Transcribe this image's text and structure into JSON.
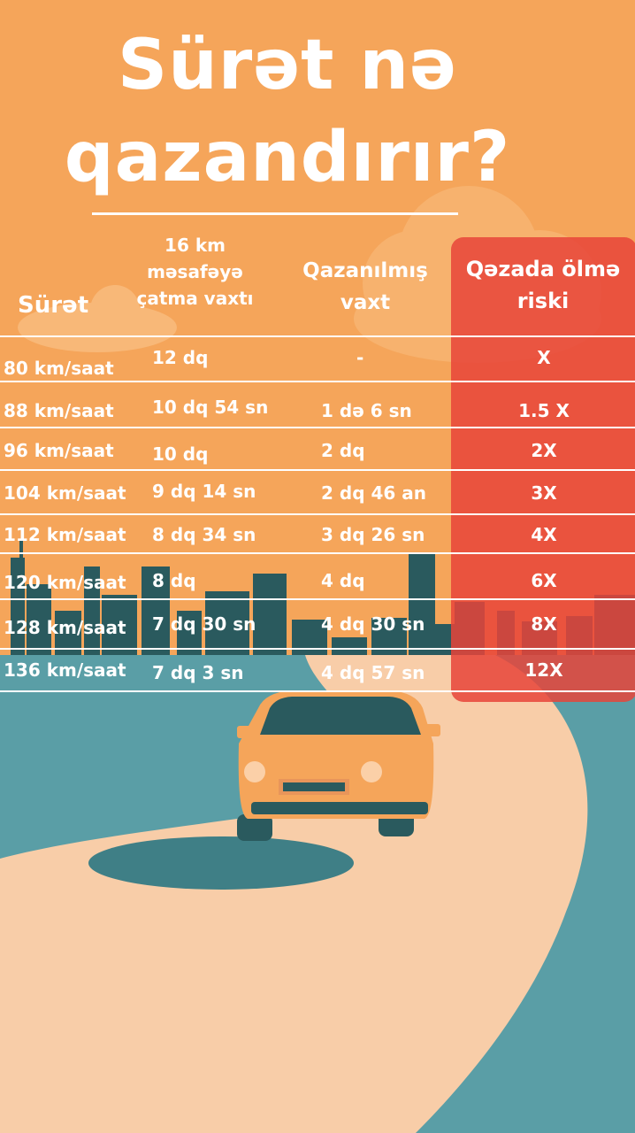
{
  "title": {
    "line1": "Sürət nə",
    "line2": "qazandırır?"
  },
  "table": {
    "headers": {
      "speed": "Sürət",
      "time_line1": "16 km",
      "time_line2": "məsafəyə",
      "time_line3": "çatma vaxtı",
      "gain_line1": "Qazanılmış",
      "gain_line2": "vaxt",
      "risk_line1": "Qəzada ölmə",
      "risk_line2": "riski"
    },
    "rows": [
      {
        "speed": "80 km/saat",
        "time": "12 dq",
        "gain": "-",
        "risk": "X"
      },
      {
        "speed": "88 km/saat",
        "time": "10 dq 54 sn",
        "gain": "1 də 6 sn",
        "risk": "1.5 X"
      },
      {
        "speed": "96 km/saat",
        "time": "10 dq",
        "gain": "2 dq",
        "risk": "2X"
      },
      {
        "speed": "104 km/saat",
        "time": "9 dq 14 sn",
        "gain": "2 dq 46 an",
        "risk": "3X"
      },
      {
        "speed": "112 km/saat",
        "time": "8 dq 34 sn",
        "gain": "3 dq 26 sn",
        "risk": "4X"
      },
      {
        "speed": "120 km/saat",
        "time": "8 dq",
        "gain": "4 dq",
        "risk": "6X"
      },
      {
        "speed": "128 km/saat",
        "time": "7 dq 30 sn",
        "gain": "4 dq 30 sn",
        "risk": "8X"
      },
      {
        "speed": "136 km/saat",
        "time": "7 dq 3 sn",
        "gain": "4 dq 57 sn",
        "risk": "12X"
      }
    ]
  },
  "colors": {
    "background": "#f5a55a",
    "risk_column": "#e8443a",
    "road": "#f8cda8",
    "water": "#5a9ea6",
    "skyline": "#2a5a5e",
    "car": "#f5a55a"
  }
}
